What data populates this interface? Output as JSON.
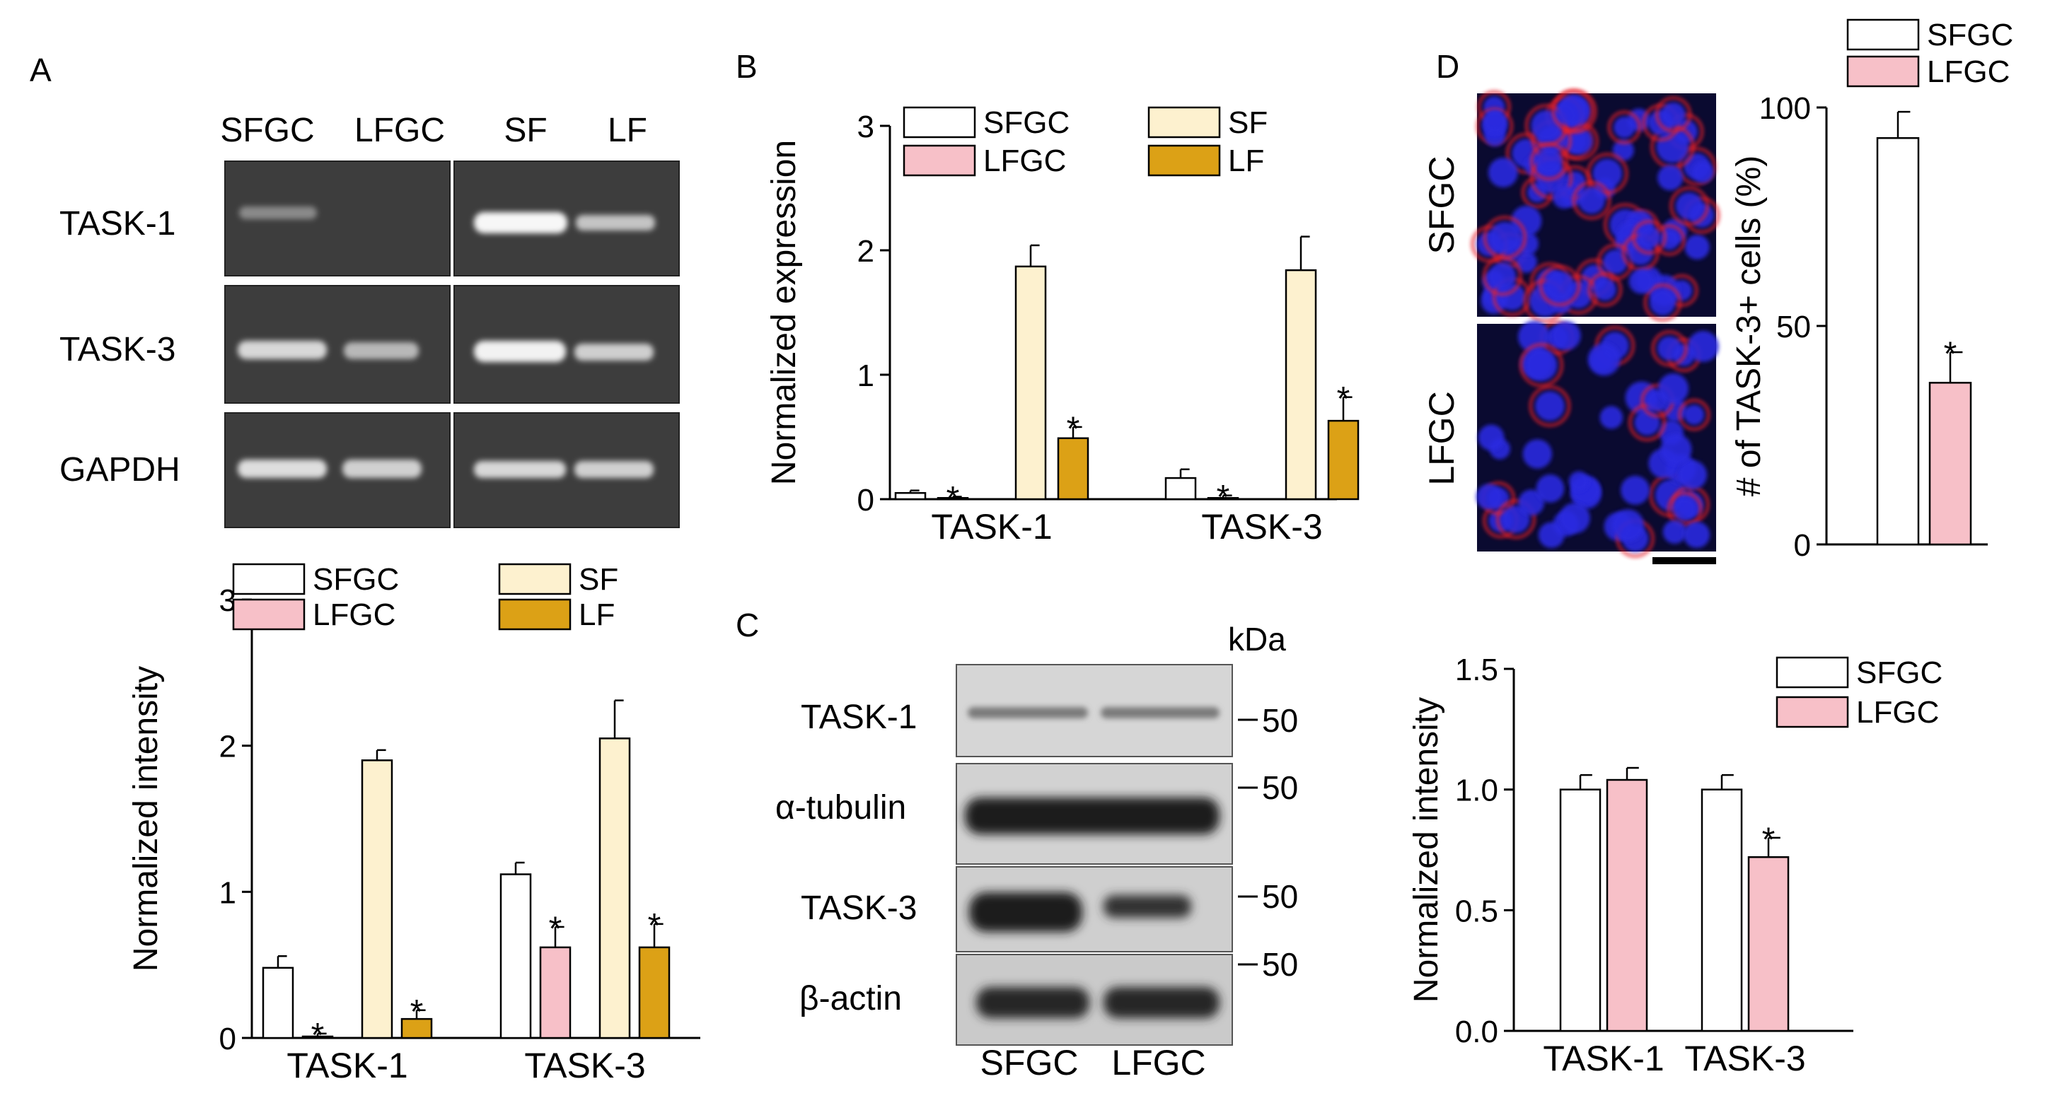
{
  "colors": {
    "SFGC": "#ffffff",
    "LFGC": "#f7c0c8",
    "SF": "#fdf1cf",
    "LF": "#dca116",
    "axis": "#000000",
    "gel_background": "#3c3c3c",
    "gel_band": "#f2f2f2",
    "blot_background": "#d4d4d4",
    "blot_band": "#1a1a1a",
    "if_nuclei": "#2a2ae0",
    "if_membrane": "#e8202a"
  },
  "panels": {
    "A": {
      "label": "A",
      "gel": {
        "lane_labels": [
          "SFGC",
          "LFGC",
          "SF",
          "LF"
        ],
        "row_labels": [
          "TASK-1",
          "TASK-3",
          "GAPDH"
        ]
      }
    },
    "B": {
      "label": "B"
    },
    "C": {
      "label": "C",
      "kda_label": "kDa",
      "blot_rows": [
        "TASK-1",
        "α-tubulin",
        "TASK-3",
        "β-actin"
      ],
      "marker_labels": [
        "50",
        "50",
        "50",
        "50"
      ],
      "lane_labels": [
        "SFGC",
        "LFGC"
      ]
    },
    "D": {
      "label": "D",
      "image_labels": [
        "SFGC",
        "LFGC"
      ]
    }
  },
  "chart_data": [
    {
      "id": "A-bottom",
      "type": "bar",
      "ylabel": "Normalized intensity",
      "xlabel": "",
      "ylim": [
        0,
        3
      ],
      "yticks": [
        0,
        1,
        2,
        3
      ],
      "categories": [
        "TASK-1",
        "TASK-3"
      ],
      "series": [
        {
          "name": "SFGC",
          "values": [
            0.48,
            1.12
          ],
          "errors": [
            0.08,
            0.08
          ]
        },
        {
          "name": "LFGC",
          "values": [
            0.01,
            0.62
          ],
          "errors": [
            0.02,
            0.14
          ]
        },
        {
          "name": "SF",
          "values": [
            1.9,
            2.05
          ],
          "errors": [
            0.07,
            0.26
          ]
        },
        {
          "name": "LF",
          "values": [
            0.13,
            0.62
          ],
          "errors": [
            0.06,
            0.16
          ]
        }
      ],
      "significance": {
        "LFGC": [
          "*",
          "*"
        ],
        "LF": [
          "*",
          "*"
        ]
      },
      "legend": "top"
    },
    {
      "id": "B",
      "type": "bar",
      "ylabel": "Normalized expression",
      "xlabel": "",
      "ylim": [
        0,
        3
      ],
      "yticks": [
        0,
        1,
        2,
        3
      ],
      "categories": [
        "TASK-1",
        "TASK-3"
      ],
      "series": [
        {
          "name": "SFGC",
          "values": [
            0.05,
            0.17
          ],
          "errors": [
            0.02,
            0.07
          ]
        },
        {
          "name": "LFGC",
          "values": [
            0.01,
            0.01
          ],
          "errors": [
            0.01,
            0.02
          ]
        },
        {
          "name": "SF",
          "values": [
            1.87,
            1.84
          ],
          "errors": [
            0.17,
            0.27
          ]
        },
        {
          "name": "LF",
          "values": [
            0.49,
            0.63
          ],
          "errors": [
            0.09,
            0.19
          ]
        }
      ],
      "significance": {
        "LFGC": [
          "*",
          "*"
        ],
        "LF": [
          "*",
          "*"
        ]
      },
      "legend": "top"
    },
    {
      "id": "C-right",
      "type": "bar",
      "ylabel": "Normalized intensity",
      "xlabel": "",
      "ylim": [
        0,
        1.5
      ],
      "yticks": [
        "0.0",
        "0.5",
        "1.0",
        "1.5"
      ],
      "categories": [
        "TASK-1",
        "TASK-3"
      ],
      "series": [
        {
          "name": "SFGC",
          "values": [
            1.0,
            1.0
          ],
          "errors": [
            0.06,
            0.06
          ]
        },
        {
          "name": "LFGC",
          "values": [
            1.04,
            0.72
          ],
          "errors": [
            0.05,
            0.08
          ]
        }
      ],
      "significance": {
        "LFGC": [
          "",
          "*"
        ]
      },
      "legend": "top-right"
    },
    {
      "id": "D-right",
      "type": "bar",
      "ylabel": "# of TASK-3+ cells (%)",
      "xlabel": "",
      "ylim": [
        0,
        100
      ],
      "yticks": [
        0,
        50,
        100
      ],
      "categories": [
        ""
      ],
      "series": [
        {
          "name": "SFGC",
          "values": [
            93
          ],
          "errors": [
            6
          ]
        },
        {
          "name": "LFGC",
          "values": [
            37
          ],
          "errors": [
            7
          ]
        }
      ],
      "significance": {
        "LFGC": [
          "*"
        ]
      },
      "legend": "top"
    }
  ]
}
